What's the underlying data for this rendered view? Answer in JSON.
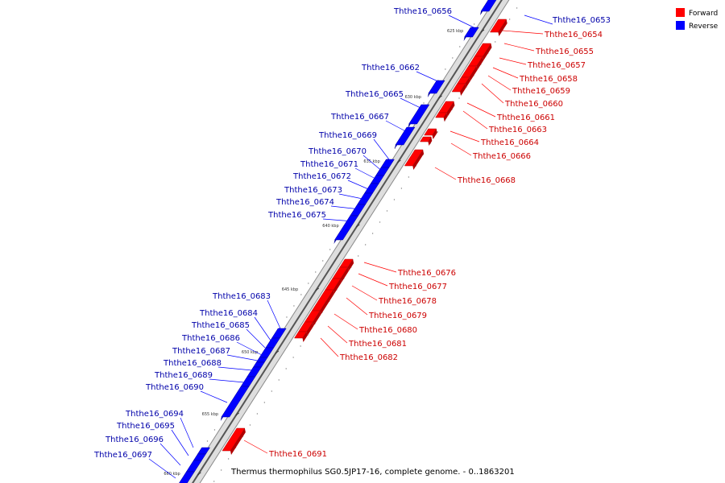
{
  "caption": "Thermus thermophilus SG0.5JP17-16, complete genome. - 0..1863201",
  "legend": [
    {
      "label": "Forward",
      "color": "#ff0000"
    },
    {
      "label": "Reverse",
      "color": "#0000ff"
    }
  ],
  "colors": {
    "forward": "#ff0000",
    "reverse": "#0000ff",
    "backbone": "#7a7a7a"
  },
  "ticks": [
    "625 kbp",
    "630 kbp",
    "635 kbp",
    "640 kbp",
    "645 kbp",
    "650 kbp",
    "655 kbp",
    "660 kbp"
  ],
  "genes_reverse": [
    "Ththe16_0653",
    "Ththe16_0656",
    "Ththe16_0662",
    "Ththe16_0665",
    "Ththe16_0667",
    "Ththe16_0669",
    "Ththe16_0670",
    "Ththe16_0671",
    "Ththe16_0672",
    "Ththe16_0673",
    "Ththe16_0674",
    "Ththe16_0675",
    "Ththe16_0683",
    "Ththe16_0684",
    "Ththe16_0685",
    "Ththe16_0686",
    "Ththe16_0687",
    "Ththe16_0688",
    "Ththe16_0689",
    "Ththe16_0690",
    "Ththe16_0694",
    "Ththe16_0695",
    "Ththe16_0696",
    "Ththe16_0697"
  ],
  "genes_forward": [
    "Ththe16_0654",
    "Ththe16_0655",
    "Ththe16_0657",
    "Ththe16_0658",
    "Ththe16_0659",
    "Ththe16_0660",
    "Ththe16_0661",
    "Ththe16_0663",
    "Ththe16_0664",
    "Ththe16_0666",
    "Ththe16_0668",
    "Ththe16_0676",
    "Ththe16_0677",
    "Ththe16_0678",
    "Ththe16_0679",
    "Ththe16_0680",
    "Ththe16_0681",
    "Ththe16_0682",
    "Ththe16_0691"
  ]
}
